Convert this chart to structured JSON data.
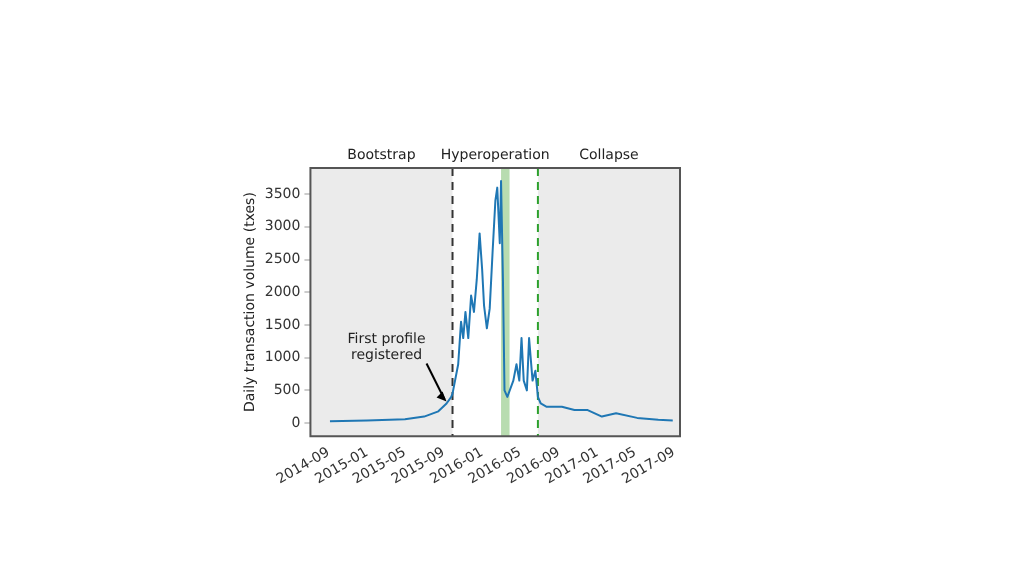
{
  "chart_data": {
    "type": "line",
    "ylabel": "Daily transaction volume (txes)",
    "x": [
      "2014-09-05",
      "2015-01-01",
      "2015-05-01",
      "2015-07-01",
      "2015-08-15",
      "2015-09-10",
      "2015-09-25",
      "2015-09-29",
      "2015-10-17",
      "2015-10-26",
      "2015-11-02",
      "2015-11-09",
      "2015-11-18",
      "2015-11-27",
      "2015-12-06",
      "2015-12-15",
      "2015-12-24",
      "2016-01-01",
      "2016-01-07",
      "2016-01-16",
      "2016-01-25",
      "2016-02-03",
      "2016-02-12",
      "2016-02-18",
      "2016-02-26",
      "2016-03-01",
      "2016-03-07",
      "2016-03-12",
      "2016-03-21",
      "2016-04-09",
      "2016-04-19",
      "2016-04-28",
      "2016-05-05",
      "2016-05-12",
      "2016-05-22",
      "2016-05-29",
      "2016-06-09",
      "2016-06-18",
      "2016-06-26",
      "2016-07-05",
      "2016-07-24",
      "2016-09-10",
      "2016-10-20",
      "2016-12-01",
      "2017-01-15",
      "2017-03-01",
      "2017-05-07",
      "2017-07-13",
      "2017-08-28"
    ],
    "series": [
      {
        "color": "#1f77b4",
        "values": [
          30,
          40,
          60,
          100,
          180,
          300,
          400,
          450,
          900,
          1550,
          1300,
          1700,
          1300,
          1950,
          1700,
          2200,
          2900,
          2350,
          1800,
          1450,
          1750,
          2600,
          3400,
          3600,
          2750,
          3700,
          2200,
          500,
          400,
          650,
          900,
          650,
          1300,
          650,
          500,
          1300,
          650,
          800,
          400,
          300,
          250,
          250,
          200,
          200,
          100,
          150,
          80,
          50,
          40
        ]
      }
    ],
    "xlim": [
      "2014-07-05",
      "2017-09-20"
    ],
    "xticks": [
      "2014-09",
      "2015-01",
      "2015-05",
      "2015-09",
      "2016-01",
      "2016-05",
      "2016-09",
      "2017-01",
      "2017-05",
      "2017-09"
    ],
    "ylim": [
      -200,
      3900
    ],
    "yticks": [
      0,
      500,
      1000,
      1500,
      2000,
      2500,
      3000,
      3500
    ],
    "bands": [
      {
        "axis": "x",
        "from": "2014-07-05",
        "to": "2015-09-29",
        "label": "Bootstrap",
        "color": "#ebebeb"
      },
      {
        "axis": "x",
        "from": "2016-06-26",
        "to": "2017-09-20",
        "label": "Collapse",
        "color": "#ebebeb"
      },
      {
        "axis": "x",
        "from": "2016-03-01",
        "to": "2016-03-28",
        "color": "#b8dcb0"
      }
    ],
    "ref_lines": [
      {
        "axis": "x",
        "value": "2015-09-29",
        "color": "#333333",
        "line_style": "dashed"
      },
      {
        "axis": "x",
        "value": "2016-06-26",
        "color": "#2ca02c",
        "line_style": "dashed"
      }
    ],
    "annotations": [
      "Hyperoperation",
      {
        "text": "First profile registered",
        "x": "2015-09-10",
        "y": 300
      }
    ],
    "grid": false,
    "legend": false,
    "marker": "none",
    "line_style": "solid"
  }
}
